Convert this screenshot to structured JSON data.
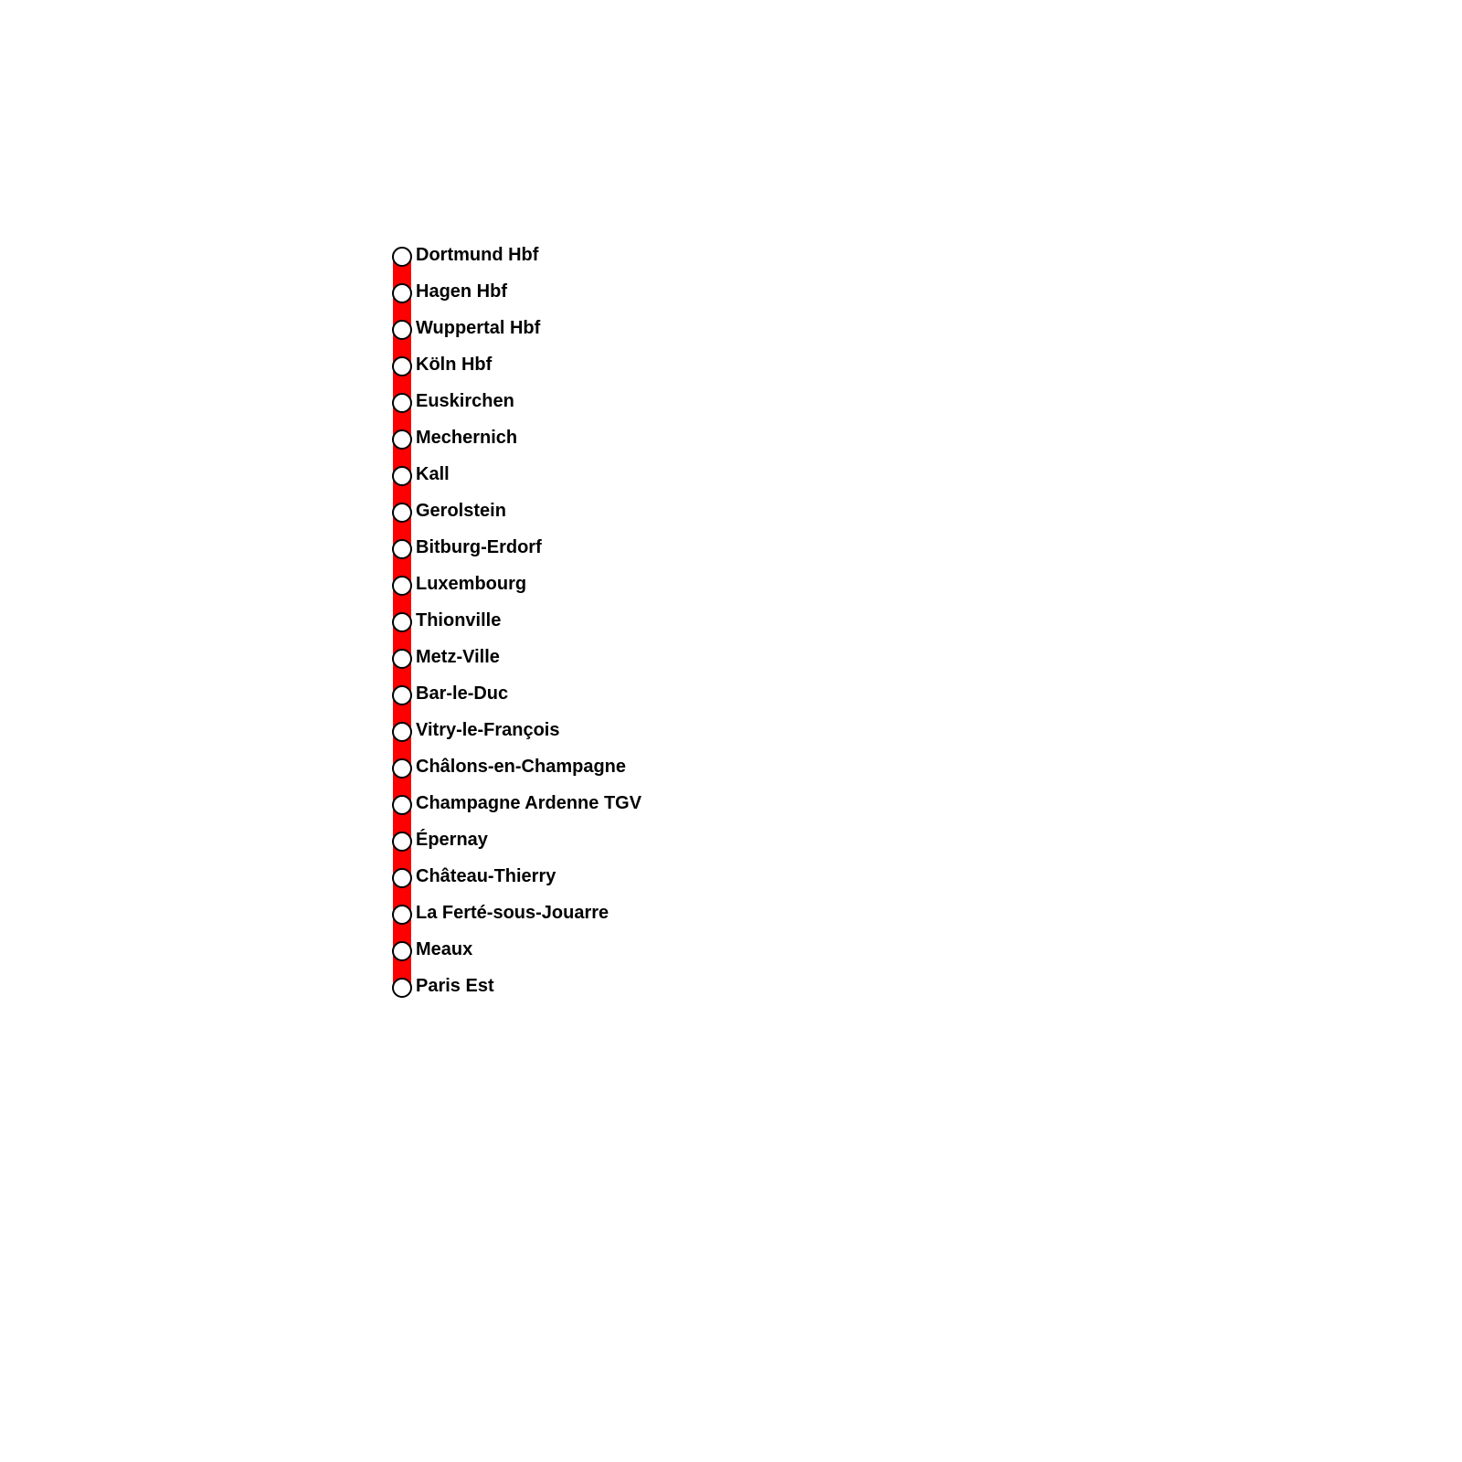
{
  "line_color": "#ff0000",
  "stations": [
    "Dortmund Hbf",
    "Hagen Hbf",
    "Wuppertal Hbf",
    "Köln Hbf",
    "Euskirchen",
    "Mechernich",
    "Kall",
    "Gerolstein",
    "Bitburg-Erdorf",
    "Luxembourg",
    "Thionville",
    "Metz-Ville",
    "Bar-le-Duc",
    "Vitry-le-François",
    "Châlons-en-Champagne",
    "Champagne Ardenne TGV",
    "Épernay",
    "Château-Thierry",
    "La Ferté-sous-Jouarre",
    "Meaux",
    "Paris Est"
  ]
}
